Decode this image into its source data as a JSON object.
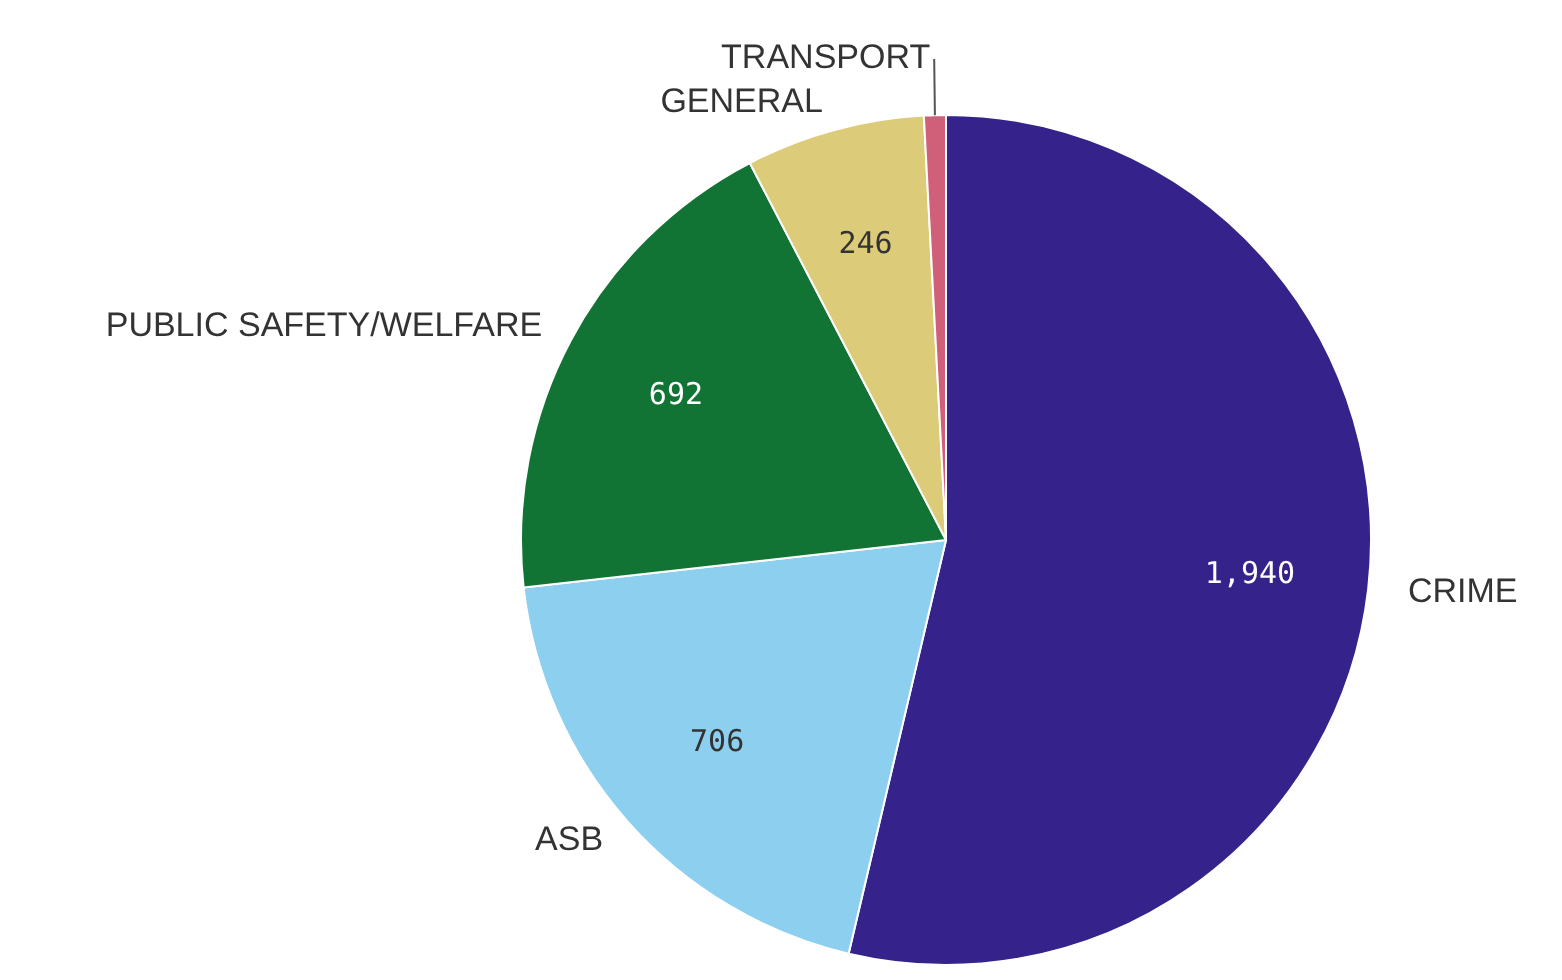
{
  "chart_data": {
    "type": "pie",
    "categories": [
      "CRIME",
      "ASB",
      "PUBLIC SAFETY/WELFARE",
      "GENERAL",
      "TRANSPORT"
    ],
    "values": [
      1940,
      706,
      692,
      246,
      30
    ],
    "colors": [
      "#35228a",
      "#8ccfef",
      "#127434",
      "#dccb78",
      "#d0607a"
    ],
    "value_labels": [
      "1,940",
      "706",
      "692",
      "246",
      null
    ],
    "legend": false
  }
}
